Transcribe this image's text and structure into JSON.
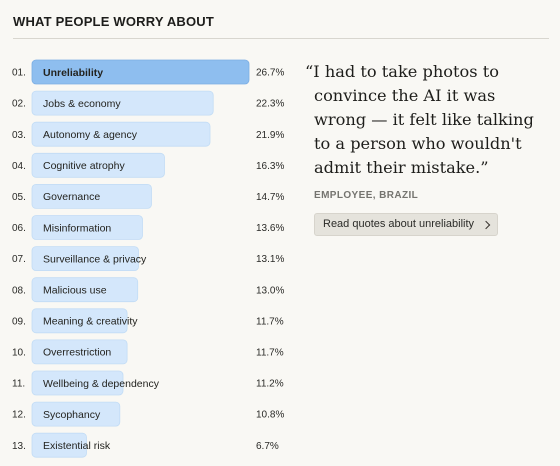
{
  "page": {
    "title": "WHAT PEOPLE WORRY ABOUT"
  },
  "chart_data": {
    "type": "bar",
    "orientation": "horizontal",
    "title": "WHAT PEOPLE WORRY ABOUT",
    "categories": [
      {
        "rank": "01.",
        "label": "Unreliability",
        "value": 26.7,
        "display": "26.7%",
        "highlighted": true
      },
      {
        "rank": "02.",
        "label": "Jobs & economy",
        "value": 22.3,
        "display": "22.3%",
        "highlighted": false
      },
      {
        "rank": "03.",
        "label": "Autonomy & agency",
        "value": 21.9,
        "display": "21.9%",
        "highlighted": false
      },
      {
        "rank": "04.",
        "label": "Cognitive atrophy",
        "value": 16.3,
        "display": "16.3%",
        "highlighted": false
      },
      {
        "rank": "05.",
        "label": "Governance",
        "value": 14.7,
        "display": "14.7%",
        "highlighted": false
      },
      {
        "rank": "06.",
        "label": "Misinformation",
        "value": 13.6,
        "display": "13.6%",
        "highlighted": false
      },
      {
        "rank": "07.",
        "label": "Surveillance & privacy",
        "value": 13.1,
        "display": "13.1%",
        "highlighted": false
      },
      {
        "rank": "08.",
        "label": "Malicious use",
        "value": 13.0,
        "display": "13.0%",
        "highlighted": false
      },
      {
        "rank": "09.",
        "label": "Meaning & creativity",
        "value": 11.7,
        "display": "11.7%",
        "highlighted": false
      },
      {
        "rank": "10.",
        "label": "Overrestriction",
        "value": 11.7,
        "display": "11.7%",
        "highlighted": false
      },
      {
        "rank": "11.",
        "label": "Wellbeing & dependency",
        "value": 11.2,
        "display": "11.2%",
        "highlighted": false
      },
      {
        "rank": "12.",
        "label": "Sycophancy",
        "value": 10.8,
        "display": "10.8%",
        "highlighted": false
      },
      {
        "rank": "13.",
        "label": "Existential risk",
        "value": 6.7,
        "display": "6.7%",
        "highlighted": false
      }
    ],
    "xlim": [
      0,
      26.7
    ],
    "grid": false,
    "legend": "none",
    "colors": {
      "highlight": "#8ebeef",
      "highlight_border": "#7caee3",
      "default": "#d4e7fb",
      "default_border": "#c2dcf5"
    }
  },
  "quote": {
    "text": "“I had to take photos to convince the AI it was wrong — it felt like talking to a person who wouldn't admit their mistake.”",
    "source": "EMPLOYEE, BRAZIL",
    "button_label": "Read quotes about unreliability",
    "button_icon": "chevron-right-icon"
  }
}
